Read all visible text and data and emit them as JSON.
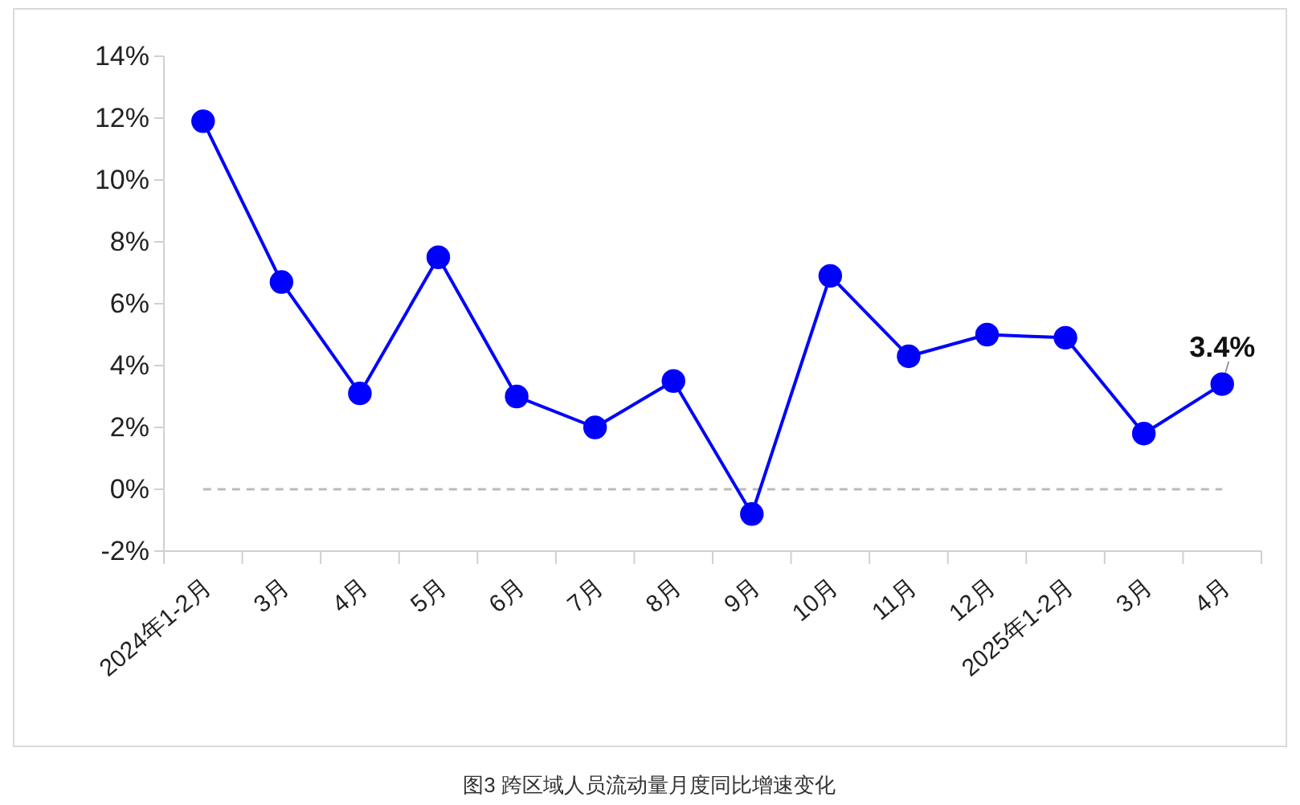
{
  "chart_data": {
    "type": "line",
    "title": "图3 跨区域人员流动量月度同比增速变化",
    "categories": [
      "2024年1-2月",
      "3月",
      "4月",
      "5月",
      "6月",
      "7月",
      "8月",
      "9月",
      "10月",
      "11月",
      "12月",
      "2025年1-2月",
      "3月",
      "4月"
    ],
    "series": [
      {
        "color": "#0000ff",
        "values": [
          11.9,
          6.7,
          3.1,
          7.5,
          3.0,
          2.0,
          3.5,
          -0.8,
          6.9,
          4.3,
          5.0,
          4.9,
          1.8,
          3.4
        ]
      }
    ],
    "ylim": [
      -2,
      14
    ],
    "yticks": [
      {
        "value": -2,
        "label": "-2%"
      },
      {
        "value": 0,
        "label": "0%"
      },
      {
        "value": 2,
        "label": "2%"
      },
      {
        "value": 4,
        "label": "4%"
      },
      {
        "value": 6,
        "label": "6%"
      },
      {
        "value": 8,
        "label": "8%"
      },
      {
        "value": 10,
        "label": "10%"
      },
      {
        "value": 12,
        "label": "12%"
      },
      {
        "value": 14,
        "label": "14%"
      }
    ],
    "ref_lines": [
      {
        "axis": "y",
        "value": 0,
        "color": "#bbbbbb",
        "line_style": "dashed"
      }
    ],
    "annotations": [
      "3.4%"
    ],
    "marker": "circle",
    "line_style": "solid",
    "grid": false
  }
}
